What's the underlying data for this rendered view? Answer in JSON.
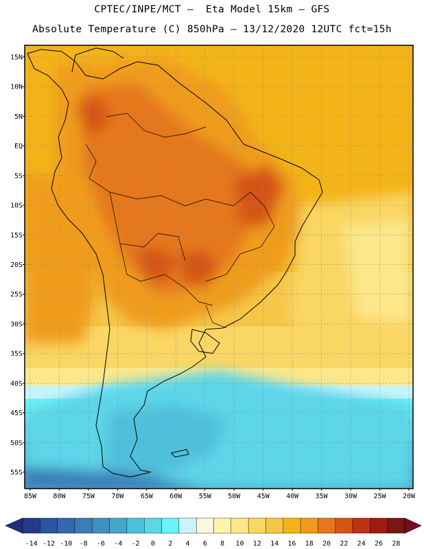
{
  "header": {
    "line1": "CPTEC/INPE/MCT –  Eta Model 15km – GFS",
    "line2": "Absolute Temperature (C) 850hPa – 13/12/2020 12UTC fct=15h"
  },
  "map": {
    "lat_labels": [
      "15N",
      "10N",
      "5N",
      "EQ",
      "5S",
      "10S",
      "15S",
      "20S",
      "25S",
      "30S",
      "35S",
      "40S",
      "45S",
      "50S",
      "55S"
    ],
    "lon_labels": [
      "85W",
      "80W",
      "75W",
      "70W",
      "65W",
      "60W",
      "55W",
      "50W",
      "45W",
      "40W",
      "35W",
      "30W",
      "25W",
      "20W"
    ],
    "lat_values": [
      15,
      10,
      5,
      0,
      -5,
      -10,
      -15,
      -20,
      -25,
      -30,
      -35,
      -40,
      -45,
      -50,
      -55
    ],
    "lon_values": [
      -85,
      -80,
      -75,
      -70,
      -65,
      -60,
      -55,
      -50,
      -45,
      -40,
      -35,
      -30,
      -25,
      -20
    ]
  },
  "colorbar": {
    "labels": [
      "-14",
      "-12",
      "-10",
      "-8",
      "-6",
      "-4",
      "-2",
      "0",
      "2",
      "4",
      "6",
      "8",
      "10",
      "12",
      "14",
      "16",
      "18",
      "20",
      "22",
      "24",
      "26",
      "28"
    ],
    "under_color": "#1f2f80",
    "over_color": "#7a0a1e",
    "colors": [
      "#233b8a",
      "#2c55a0",
      "#3468ad",
      "#3a7db7",
      "#4090c0",
      "#45a6cc",
      "#4fbfdb",
      "#5cd6e8",
      "#6cf1f7",
      "#c9f4fb",
      "#fbf6e0",
      "#fdf5a8",
      "#fde78a",
      "#fad664",
      "#f6c648",
      "#f3b419",
      "#ef9c1e",
      "#e5781c",
      "#d55514",
      "#bc3313",
      "#9c1c11",
      "#7a1714"
    ]
  }
}
